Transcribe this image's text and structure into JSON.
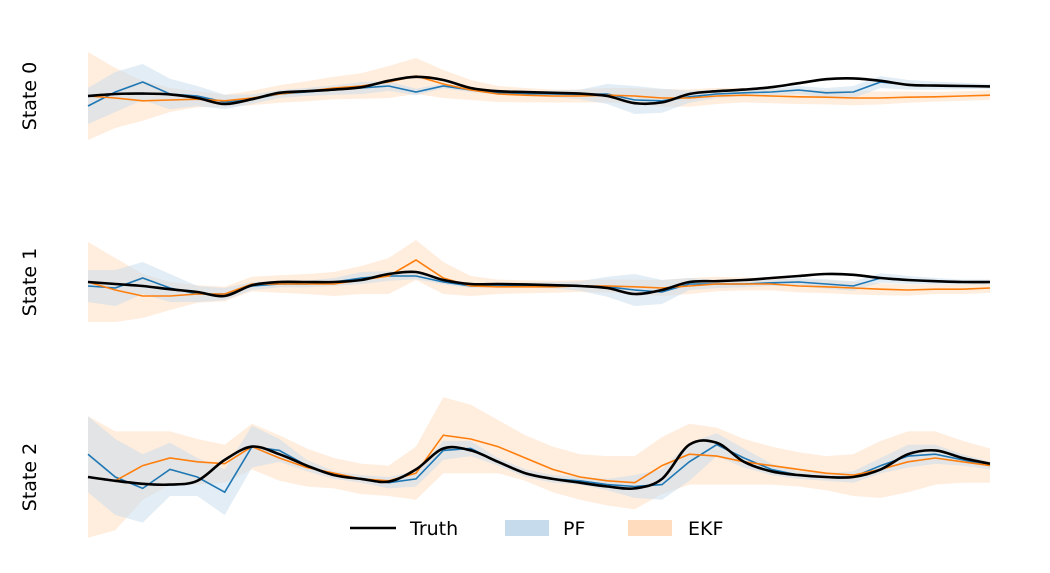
{
  "chart_data": {
    "type": "line",
    "panels": [
      {
        "ylabel": "State 0",
        "x": [
          0,
          3,
          6,
          9,
          12,
          15,
          18,
          21,
          24,
          27,
          30,
          33,
          36,
          39,
          42,
          45,
          48,
          51,
          54,
          57,
          60,
          63,
          66,
          69,
          72,
          75,
          78,
          81,
          84,
          87,
          90,
          93,
          96,
          99
        ],
        "truth": [
          0.0,
          0.05,
          0.06,
          0.04,
          -0.05,
          -0.2,
          -0.08,
          0.08,
          0.12,
          0.16,
          0.22,
          0.38,
          0.48,
          0.4,
          0.2,
          0.12,
          0.1,
          0.08,
          0.06,
          0.0,
          -0.18,
          -0.16,
          0.05,
          0.12,
          0.16,
          0.22,
          0.32,
          0.42,
          0.44,
          0.38,
          0.28,
          0.26,
          0.25,
          0.24
        ],
        "pf_mean": [
          -0.25,
          0.1,
          0.35,
          0.05,
          0.0,
          -0.15,
          -0.08,
          0.05,
          0.1,
          0.15,
          0.2,
          0.25,
          0.1,
          0.25,
          0.15,
          0.08,
          0.06,
          0.05,
          0.04,
          0.05,
          -0.1,
          -0.12,
          -0.02,
          0.05,
          0.08,
          0.1,
          0.15,
          0.08,
          0.1,
          0.35,
          0.28,
          0.26,
          0.25,
          0.24
        ],
        "pf_std": [
          0.45,
          0.5,
          0.45,
          0.38,
          0.25,
          0.18,
          0.12,
          0.1,
          0.1,
          0.12,
          0.15,
          0.12,
          0.08,
          0.06,
          0.05,
          0.05,
          0.06,
          0.08,
          0.12,
          0.25,
          0.35,
          0.3,
          0.15,
          0.1,
          0.08,
          0.08,
          0.1,
          0.12,
          0.15,
          0.15,
          0.12,
          0.1,
          0.08,
          0.06
        ],
        "ekf_mean": [
          0.0,
          -0.05,
          -0.12,
          -0.1,
          -0.08,
          -0.12,
          -0.05,
          0.05,
          0.12,
          0.2,
          0.25,
          0.35,
          0.5,
          0.3,
          0.15,
          0.05,
          0.02,
          0.0,
          0.0,
          0.02,
          0.0,
          -0.05,
          -0.05,
          0.0,
          0.02,
          0.0,
          -0.02,
          -0.03,
          -0.05,
          -0.05,
          -0.03,
          -0.02,
          0.0,
          0.02
        ],
        "ekf_std": [
          1.1,
          0.75,
          0.5,
          0.3,
          0.2,
          0.15,
          0.18,
          0.22,
          0.25,
          0.28,
          0.32,
          0.4,
          0.45,
          0.35,
          0.25,
          0.2,
          0.18,
          0.16,
          0.16,
          0.18,
          0.2,
          0.22,
          0.22,
          0.2,
          0.18,
          0.18,
          0.18,
          0.18,
          0.18,
          0.16,
          0.14,
          0.12,
          0.12,
          0.12
        ]
      },
      {
        "ylabel": "State 1",
        "x": [
          0,
          3,
          6,
          9,
          12,
          15,
          18,
          21,
          24,
          27,
          30,
          33,
          36,
          39,
          42,
          45,
          48,
          51,
          54,
          57,
          60,
          63,
          66,
          69,
          72,
          75,
          78,
          81,
          84,
          87,
          90,
          93,
          96,
          99
        ],
        "truth": [
          0.0,
          -0.05,
          -0.1,
          -0.18,
          -0.25,
          -0.35,
          -0.08,
          0.0,
          0.0,
          0.0,
          0.05,
          0.2,
          0.25,
          0.05,
          -0.05,
          -0.05,
          -0.06,
          -0.08,
          -0.1,
          -0.15,
          -0.3,
          -0.2,
          0.0,
          0.02,
          0.05,
          0.1,
          0.15,
          0.2,
          0.18,
          0.1,
          0.05,
          0.02,
          0.0,
          0.0
        ],
        "pf_mean": [
          -0.1,
          -0.15,
          0.1,
          -0.15,
          -0.3,
          -0.3,
          -0.1,
          -0.05,
          -0.05,
          0.0,
          0.1,
          0.15,
          0.15,
          0.0,
          -0.1,
          -0.08,
          -0.08,
          -0.08,
          -0.1,
          -0.12,
          -0.2,
          -0.25,
          -0.05,
          -0.05,
          -0.05,
          -0.02,
          0.0,
          -0.05,
          -0.1,
          0.1,
          0.05,
          0.02,
          0.0,
          0.0
        ],
        "pf_std": [
          0.4,
          0.45,
          0.4,
          0.35,
          0.2,
          0.15,
          0.1,
          0.08,
          0.08,
          0.1,
          0.15,
          0.12,
          0.08,
          0.06,
          0.05,
          0.05,
          0.06,
          0.08,
          0.12,
          0.25,
          0.4,
          0.3,
          0.15,
          0.1,
          0.08,
          0.08,
          0.1,
          0.12,
          0.12,
          0.12,
          0.1,
          0.08,
          0.06,
          0.06
        ],
        "ekf_mean": [
          0.0,
          -0.2,
          -0.35,
          -0.35,
          -0.3,
          -0.3,
          -0.05,
          -0.05,
          -0.05,
          -0.05,
          0.05,
          0.15,
          0.55,
          0.1,
          -0.1,
          -0.12,
          -0.12,
          -0.12,
          -0.1,
          -0.1,
          -0.12,
          -0.15,
          -0.1,
          -0.05,
          -0.05,
          -0.05,
          -0.1,
          -0.12,
          -0.15,
          -0.18,
          -0.2,
          -0.18,
          -0.18,
          -0.15
        ],
        "ekf_std": [
          1.0,
          0.8,
          0.55,
          0.35,
          0.22,
          0.18,
          0.18,
          0.22,
          0.25,
          0.3,
          0.35,
          0.45,
          0.5,
          0.4,
          0.25,
          0.18,
          0.16,
          0.15,
          0.15,
          0.16,
          0.18,
          0.2,
          0.2,
          0.18,
          0.16,
          0.16,
          0.16,
          0.16,
          0.16,
          0.15,
          0.14,
          0.12,
          0.12,
          0.12
        ]
      },
      {
        "ylabel": "State 2",
        "x": [
          0,
          3,
          6,
          9,
          12,
          15,
          18,
          21,
          24,
          27,
          30,
          33,
          36,
          39,
          42,
          45,
          48,
          51,
          54,
          57,
          60,
          63,
          66,
          69,
          72,
          75,
          78,
          81,
          84,
          87,
          90,
          93,
          96,
          99
        ],
        "truth": [
          0.0,
          -0.1,
          -0.18,
          -0.2,
          -0.1,
          0.45,
          0.8,
          0.6,
          0.3,
          0.05,
          -0.05,
          -0.12,
          0.2,
          0.75,
          0.7,
          0.4,
          0.1,
          -0.05,
          -0.15,
          -0.25,
          -0.3,
          -0.05,
          0.85,
          0.9,
          0.4,
          0.15,
          0.05,
          0.0,
          0.0,
          0.2,
          0.6,
          0.7,
          0.5,
          0.35
        ],
        "pf_mean": [
          0.6,
          0.0,
          -0.3,
          0.2,
          0.0,
          -0.4,
          0.8,
          0.7,
          0.3,
          0.05,
          -0.05,
          -0.15,
          -0.05,
          0.7,
          0.75,
          0.4,
          0.1,
          -0.05,
          -0.1,
          -0.2,
          -0.25,
          -0.2,
          0.4,
          0.85,
          0.5,
          0.2,
          0.05,
          0.0,
          0.0,
          0.3,
          0.55,
          0.6,
          0.45,
          0.3
        ],
        "pf_std": [
          1.0,
          1.0,
          0.9,
          0.7,
          0.5,
          0.6,
          0.55,
          0.3,
          0.15,
          0.1,
          0.1,
          0.15,
          0.2,
          0.25,
          0.2,
          0.1,
          0.1,
          0.1,
          0.1,
          0.15,
          0.3,
          0.4,
          0.5,
          0.3,
          0.25,
          0.15,
          0.1,
          0.1,
          0.15,
          0.2,
          0.3,
          0.25,
          0.15,
          0.1
        ],
        "ekf_mean": [
          0.0,
          -0.1,
          0.3,
          0.5,
          0.4,
          0.35,
          0.8,
          0.5,
          0.25,
          0.1,
          -0.05,
          -0.1,
          0.1,
          1.1,
          1.0,
          0.8,
          0.5,
          0.2,
          0.0,
          -0.1,
          -0.15,
          0.3,
          0.6,
          0.55,
          0.4,
          0.3,
          0.2,
          0.1,
          0.05,
          0.2,
          0.4,
          0.5,
          0.4,
          0.3
        ],
        "ekf_std": [
          1.6,
          1.3,
          0.9,
          0.7,
          0.6,
          0.5,
          0.6,
          0.6,
          0.5,
          0.4,
          0.4,
          0.4,
          0.7,
          1.0,
          0.9,
          0.7,
          0.6,
          0.6,
          0.6,
          0.65,
          0.7,
          0.75,
          0.8,
          0.75,
          0.6,
          0.5,
          0.45,
          0.45,
          0.55,
          0.75,
          0.8,
          0.7,
          0.55,
          0.45
        ]
      }
    ],
    "legend": {
      "placement": "lower-center",
      "entries": [
        "Truth",
        "PF",
        "EKF"
      ]
    },
    "colors": {
      "truth": "#000000",
      "pf": "#1f77b4",
      "pf_band": "#c6dcec",
      "ekf": "#ff7f0e",
      "ekf_band": "#ffdcbe"
    },
    "grid": false,
    "axes_visible": false
  }
}
